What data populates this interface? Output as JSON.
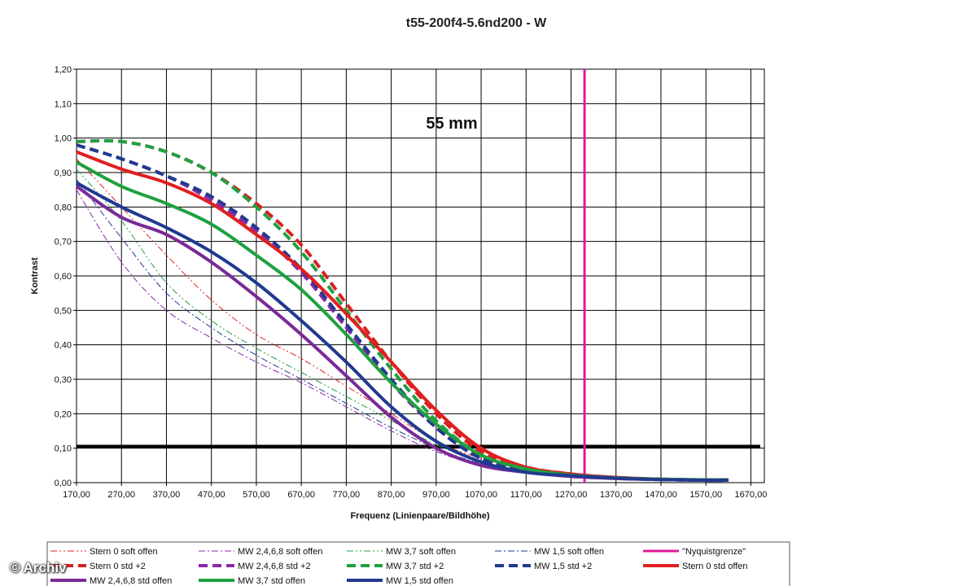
{
  "watermark": "© Archiv",
  "chart_data": {
    "type": "line",
    "title": "t55-200f4-5.6nd200 - W",
    "annotation": "55 mm",
    "xlabel": "Frequenz (Linienpaare/Bildhöhe)",
    "ylabel": "Kontrast",
    "xlim": [
      170,
      1700
    ],
    "ylim": [
      0,
      1.2
    ],
    "xticks": [
      "170,00",
      "270,00",
      "370,00",
      "470,00",
      "570,00",
      "670,00",
      "770,00",
      "870,00",
      "970,00",
      "1070,00",
      "1170,00",
      "1270,00",
      "1370,00",
      "1470,00",
      "1570,00",
      "1670,00"
    ],
    "yticks": [
      "0,00",
      "0,10",
      "0,20",
      "0,30",
      "0,40",
      "0,50",
      "0,60",
      "0,70",
      "0,80",
      "0,90",
      "1,00",
      "1,10",
      "1,20"
    ],
    "grid": true,
    "legend_position": "bottom",
    "threshold_line": {
      "y": 0.105,
      "color": "#000000"
    },
    "nyquist_line": {
      "x": 1300,
      "color": "#e0199a"
    },
    "series": [
      {
        "name": "Stern 0 soft offen",
        "color": "#e02020",
        "style": "dashdotdot",
        "width": 1,
        "x": [
          170,
          270,
          370,
          470,
          570,
          670,
          770,
          870,
          970,
          1070,
          1170,
          1270,
          1370,
          1470,
          1570,
          1620
        ],
        "y": [
          0.94,
          0.8,
          0.66,
          0.53,
          0.43,
          0.36,
          0.28,
          0.2,
          0.12,
          0.07,
          0.04,
          0.025,
          0.015,
          0.01,
          0.008,
          0.008
        ]
      },
      {
        "name": "MW 2,4,6,8 soft offen",
        "color": "#8a2aa8",
        "style": "dashdot",
        "width": 1,
        "x": [
          170,
          270,
          370,
          470,
          570,
          670,
          770,
          870,
          970,
          1070,
          1170,
          1270,
          1370,
          1470,
          1570,
          1620
        ],
        "y": [
          0.85,
          0.64,
          0.5,
          0.42,
          0.35,
          0.29,
          0.22,
          0.15,
          0.09,
          0.05,
          0.03,
          0.02,
          0.012,
          0.009,
          0.007,
          0.007
        ]
      },
      {
        "name": "MW 3,7 soft offen",
        "color": "#20a040",
        "style": "dashdotdot",
        "width": 1,
        "x": [
          170,
          270,
          370,
          470,
          570,
          670,
          770,
          870,
          970,
          1070,
          1170,
          1270,
          1370,
          1470,
          1570,
          1620
        ],
        "y": [
          0.91,
          0.76,
          0.58,
          0.47,
          0.39,
          0.32,
          0.25,
          0.18,
          0.11,
          0.06,
          0.035,
          0.02,
          0.013,
          0.009,
          0.007,
          0.007
        ]
      },
      {
        "name": "MW 1,5 soft offen",
        "color": "#203a90",
        "style": "dashdot",
        "width": 1,
        "x": [
          170,
          270,
          370,
          470,
          570,
          670,
          770,
          870,
          970,
          1070,
          1170,
          1270,
          1370,
          1470,
          1570,
          1620
        ],
        "y": [
          0.88,
          0.71,
          0.55,
          0.45,
          0.37,
          0.3,
          0.23,
          0.16,
          0.1,
          0.055,
          0.03,
          0.02,
          0.012,
          0.009,
          0.007,
          0.007
        ]
      },
      {
        "name": "\"Nyquistgrenze\"",
        "color": "#e0199a",
        "style": "solid",
        "width": 3,
        "x": [
          1300,
          1300
        ],
        "y": [
          0,
          1.2
        ]
      },
      {
        "name": "Stern 0 std +2",
        "color": "#d82020",
        "style": "dash",
        "width": 4,
        "x": [
          170,
          270,
          370,
          470,
          570,
          670,
          770,
          870,
          970,
          1070,
          1170,
          1270,
          1370,
          1470,
          1570,
          1620
        ],
        "y": [
          0.99,
          0.99,
          0.96,
          0.9,
          0.81,
          0.69,
          0.52,
          0.35,
          0.2,
          0.09,
          0.045,
          0.025,
          0.015,
          0.01,
          0.008,
          0.008
        ]
      },
      {
        "name": "MW 2,4,6,8 std +2",
        "color": "#8a2aa8",
        "style": "dash",
        "width": 4,
        "x": [
          170,
          270,
          370,
          470,
          570,
          670,
          770,
          870,
          970,
          1070,
          1170,
          1270,
          1370,
          1470,
          1570,
          1620
        ],
        "y": [
          0.98,
          0.94,
          0.89,
          0.82,
          0.73,
          0.61,
          0.45,
          0.29,
          0.16,
          0.07,
          0.035,
          0.02,
          0.013,
          0.009,
          0.007,
          0.007
        ]
      },
      {
        "name": "MW 3,7 std +2",
        "color": "#20a040",
        "style": "dash",
        "width": 4,
        "x": [
          170,
          270,
          370,
          470,
          570,
          670,
          770,
          870,
          970,
          1070,
          1170,
          1270,
          1370,
          1470,
          1570,
          1620
        ],
        "y": [
          0.99,
          0.99,
          0.96,
          0.9,
          0.8,
          0.67,
          0.5,
          0.33,
          0.18,
          0.08,
          0.04,
          0.022,
          0.014,
          0.01,
          0.008,
          0.008
        ]
      },
      {
        "name": "MW 1,5 std +2",
        "color": "#203a90",
        "style": "dash",
        "width": 4,
        "x": [
          170,
          270,
          370,
          470,
          570,
          670,
          770,
          870,
          970,
          1070,
          1170,
          1270,
          1370,
          1470,
          1570,
          1620
        ],
        "y": [
          0.98,
          0.94,
          0.89,
          0.83,
          0.74,
          0.62,
          0.46,
          0.3,
          0.16,
          0.07,
          0.035,
          0.02,
          0.013,
          0.009,
          0.007,
          0.007
        ]
      },
      {
        "name": "Stern 0 std offen",
        "color": "#e02020",
        "style": "solid",
        "width": 4,
        "x": [
          170,
          270,
          370,
          470,
          570,
          670,
          770,
          870,
          970,
          1070,
          1170,
          1270,
          1370,
          1470,
          1570,
          1620
        ],
        "y": [
          0.96,
          0.91,
          0.87,
          0.81,
          0.72,
          0.62,
          0.49,
          0.35,
          0.21,
          0.1,
          0.045,
          0.025,
          0.015,
          0.01,
          0.008,
          0.008
        ]
      },
      {
        "name": "MW 2,4,6,8 std offen",
        "color": "#7a2a98",
        "style": "solid",
        "width": 4,
        "x": [
          170,
          270,
          370,
          470,
          570,
          670,
          770,
          870,
          970,
          1070,
          1170,
          1270,
          1370,
          1470,
          1570,
          1620
        ],
        "y": [
          0.86,
          0.77,
          0.72,
          0.64,
          0.54,
          0.43,
          0.31,
          0.19,
          0.1,
          0.05,
          0.03,
          0.018,
          0.012,
          0.009,
          0.007,
          0.007
        ]
      },
      {
        "name": "MW 3,7 std offen",
        "color": "#20a040",
        "style": "solid",
        "width": 4,
        "x": [
          170,
          270,
          370,
          470,
          570,
          670,
          770,
          870,
          970,
          1070,
          1170,
          1270,
          1370,
          1470,
          1570,
          1620
        ],
        "y": [
          0.93,
          0.86,
          0.81,
          0.75,
          0.66,
          0.56,
          0.43,
          0.29,
          0.17,
          0.08,
          0.04,
          0.022,
          0.014,
          0.01,
          0.008,
          0.008
        ]
      },
      {
        "name": "MW 1,5 std offen",
        "color": "#203a90",
        "style": "solid",
        "width": 4,
        "x": [
          170,
          270,
          370,
          470,
          570,
          670,
          770,
          870,
          970,
          1070,
          1170,
          1270,
          1370,
          1470,
          1570,
          1620
        ],
        "y": [
          0.87,
          0.8,
          0.74,
          0.67,
          0.58,
          0.47,
          0.35,
          0.22,
          0.12,
          0.06,
          0.03,
          0.02,
          0.013,
          0.009,
          0.007,
          0.007
        ]
      }
    ]
  }
}
